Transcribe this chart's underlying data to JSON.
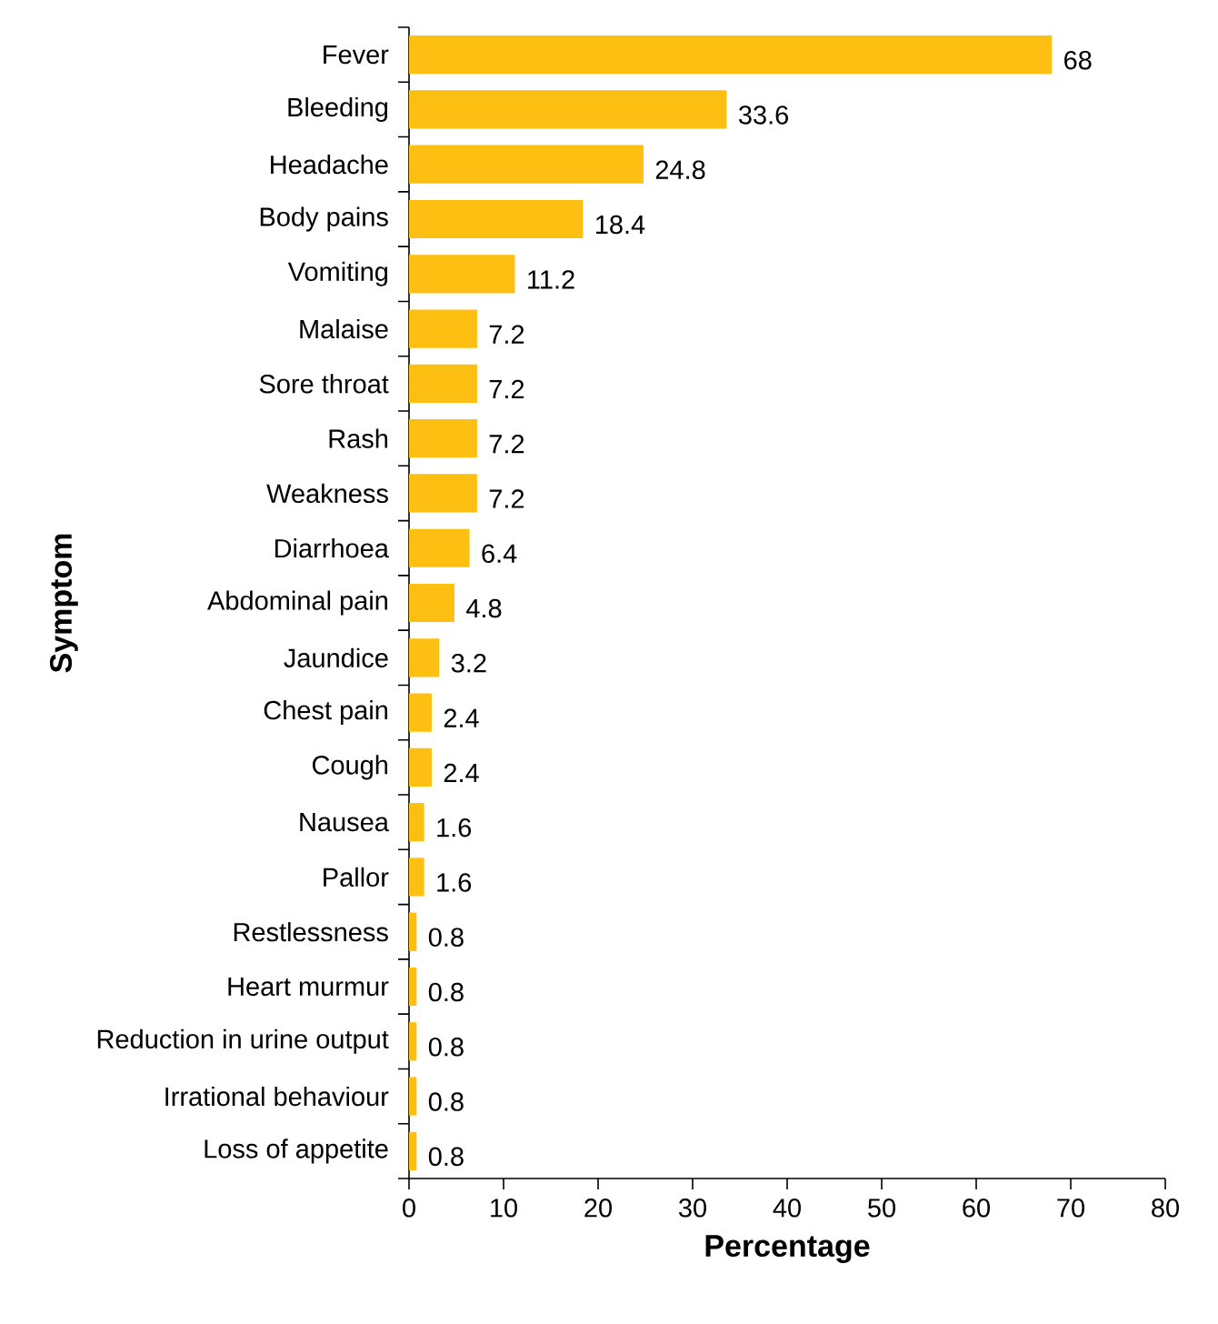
{
  "chart_data": {
    "type": "bar",
    "orientation": "horizontal",
    "xlabel": "Percentage",
    "ylabel": "Symptom",
    "categories": [
      "Fever",
      "Bleeding",
      "Headache",
      "Body pains",
      "Vomiting",
      "Malaise",
      "Sore throat",
      "Rash",
      "Weakness",
      "Diarrhoea",
      "Abdominal pain",
      "Jaundice",
      "Chest pain",
      "Cough",
      "Nausea",
      "Pallor",
      "Restlessness",
      "Heart murmur",
      "Reduction in urine output",
      "Irrational behaviour",
      "Loss of appetite"
    ],
    "values": [
      68,
      33.6,
      24.8,
      18.4,
      11.2,
      7.2,
      7.2,
      7.2,
      7.2,
      6.4,
      4.8,
      3.2,
      2.4,
      2.4,
      1.6,
      1.6,
      0.8,
      0.8,
      0.8,
      0.8,
      0.8
    ],
    "color": "#fdbf11",
    "xlim": [
      0,
      80
    ],
    "xticks": [
      0,
      10,
      20,
      30,
      40,
      50,
      60,
      70,
      80
    ],
    "data_labels": true
  }
}
